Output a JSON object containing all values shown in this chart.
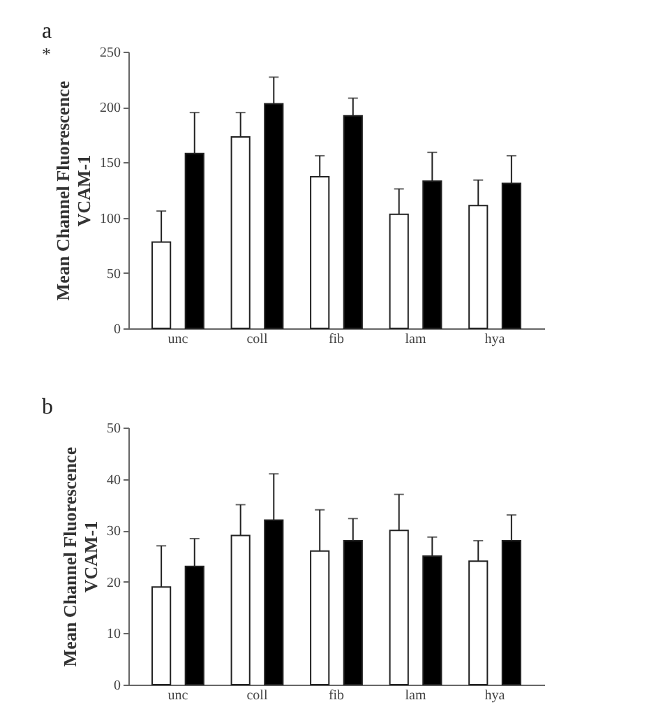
{
  "chart_data": [
    {
      "type": "bar",
      "title": "a",
      "ylabel": "Mean Channel Fluorescence\nVCAM-1",
      "categories": [
        "unc",
        "coll",
        "fib",
        "lam",
        "hya"
      ],
      "series": [
        {
          "color": "#ffffff",
          "values": [
            78,
            173,
            137,
            103,
            111
          ],
          "errors": [
            28,
            22,
            19,
            23,
            23
          ]
        },
        {
          "color": "#000000",
          "values": [
            158,
            203,
            192,
            133,
            131
          ],
          "errors": [
            37,
            24,
            16,
            26,
            25
          ]
        }
      ],
      "ylim": [
        0,
        250
      ],
      "yticks": [
        0,
        50,
        100,
        150,
        200,
        250
      ],
      "annotations": [
        "*"
      ]
    },
    {
      "type": "bar",
      "title": "b",
      "ylabel": "Mean Channel Fluorescence\nVCAM-1",
      "categories": [
        "unc",
        "coll",
        "fib",
        "lam",
        "hya"
      ],
      "series": [
        {
          "color": "#ffffff",
          "values": [
            19,
            29,
            26,
            30,
            24
          ],
          "errors": [
            8,
            6,
            8,
            7,
            4
          ]
        },
        {
          "color": "#000000",
          "values": [
            23,
            32,
            28,
            25,
            28
          ],
          "errors": [
            5.4,
            9,
            4.3,
            3.7,
            5
          ]
        }
      ],
      "ylim": [
        0,
        50
      ],
      "yticks": [
        0,
        10,
        20,
        30,
        40,
        50
      ]
    }
  ]
}
